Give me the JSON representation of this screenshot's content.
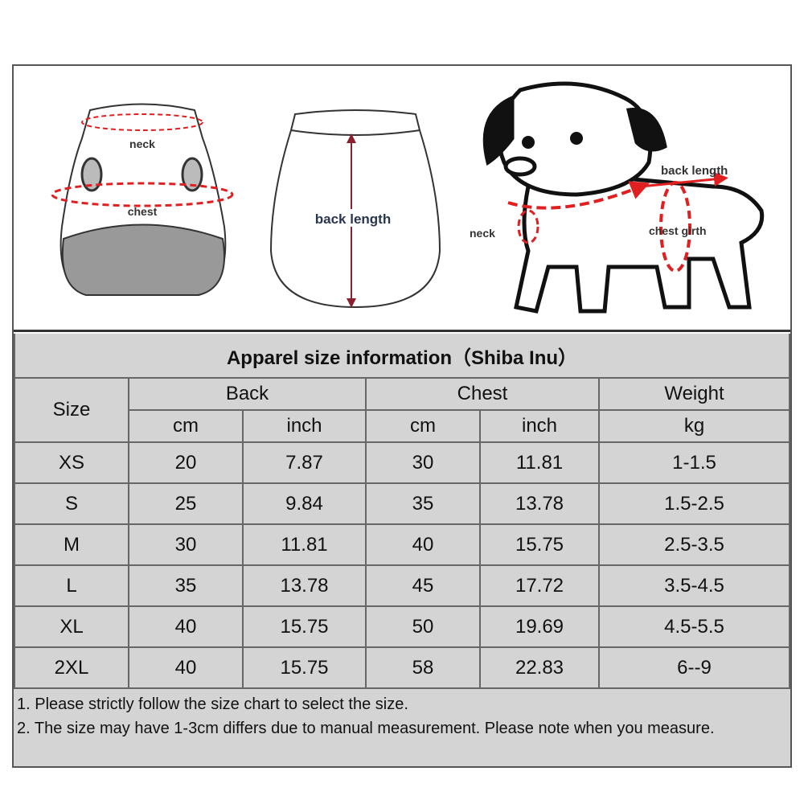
{
  "illustrations": {
    "vest_front": {
      "neck_label": "neck",
      "chest_label": "chest"
    },
    "vest_back": {
      "back_length_label": "back length"
    },
    "dog": {
      "back_length_label": "back length",
      "neck_label": "neck",
      "chest_girth_label": "chest girth"
    },
    "accent_color": "#e02020"
  },
  "table": {
    "title": "Apparel  size  information（Shiba Inu）",
    "size_header": "Size",
    "groups": [
      "Back",
      "Chest",
      "Weight"
    ],
    "units": [
      "cm",
      "inch",
      "cm",
      "inch",
      "kg"
    ],
    "rows": [
      [
        "XS",
        "20",
        "7.87",
        "30",
        "11.81",
        "1-1.5"
      ],
      [
        "S",
        "25",
        "9.84",
        "35",
        "13.78",
        "1.5-2.5"
      ],
      [
        "M",
        "30",
        "11.81",
        "40",
        "15.75",
        "2.5-3.5"
      ],
      [
        "L",
        "35",
        "13.78",
        "45",
        "17.72",
        "3.5-4.5"
      ],
      [
        "XL",
        "40",
        "15.75",
        "50",
        "19.69",
        "4.5-5.5"
      ],
      [
        "2XL",
        "40",
        "15.75",
        "58",
        "22.83",
        "6--9"
      ]
    ]
  },
  "notes": [
    "1. Please strictly follow the size chart  to select the size.",
    "2. The size may have 1-3cm differs due to manual measurement. Please note when you measure."
  ]
}
